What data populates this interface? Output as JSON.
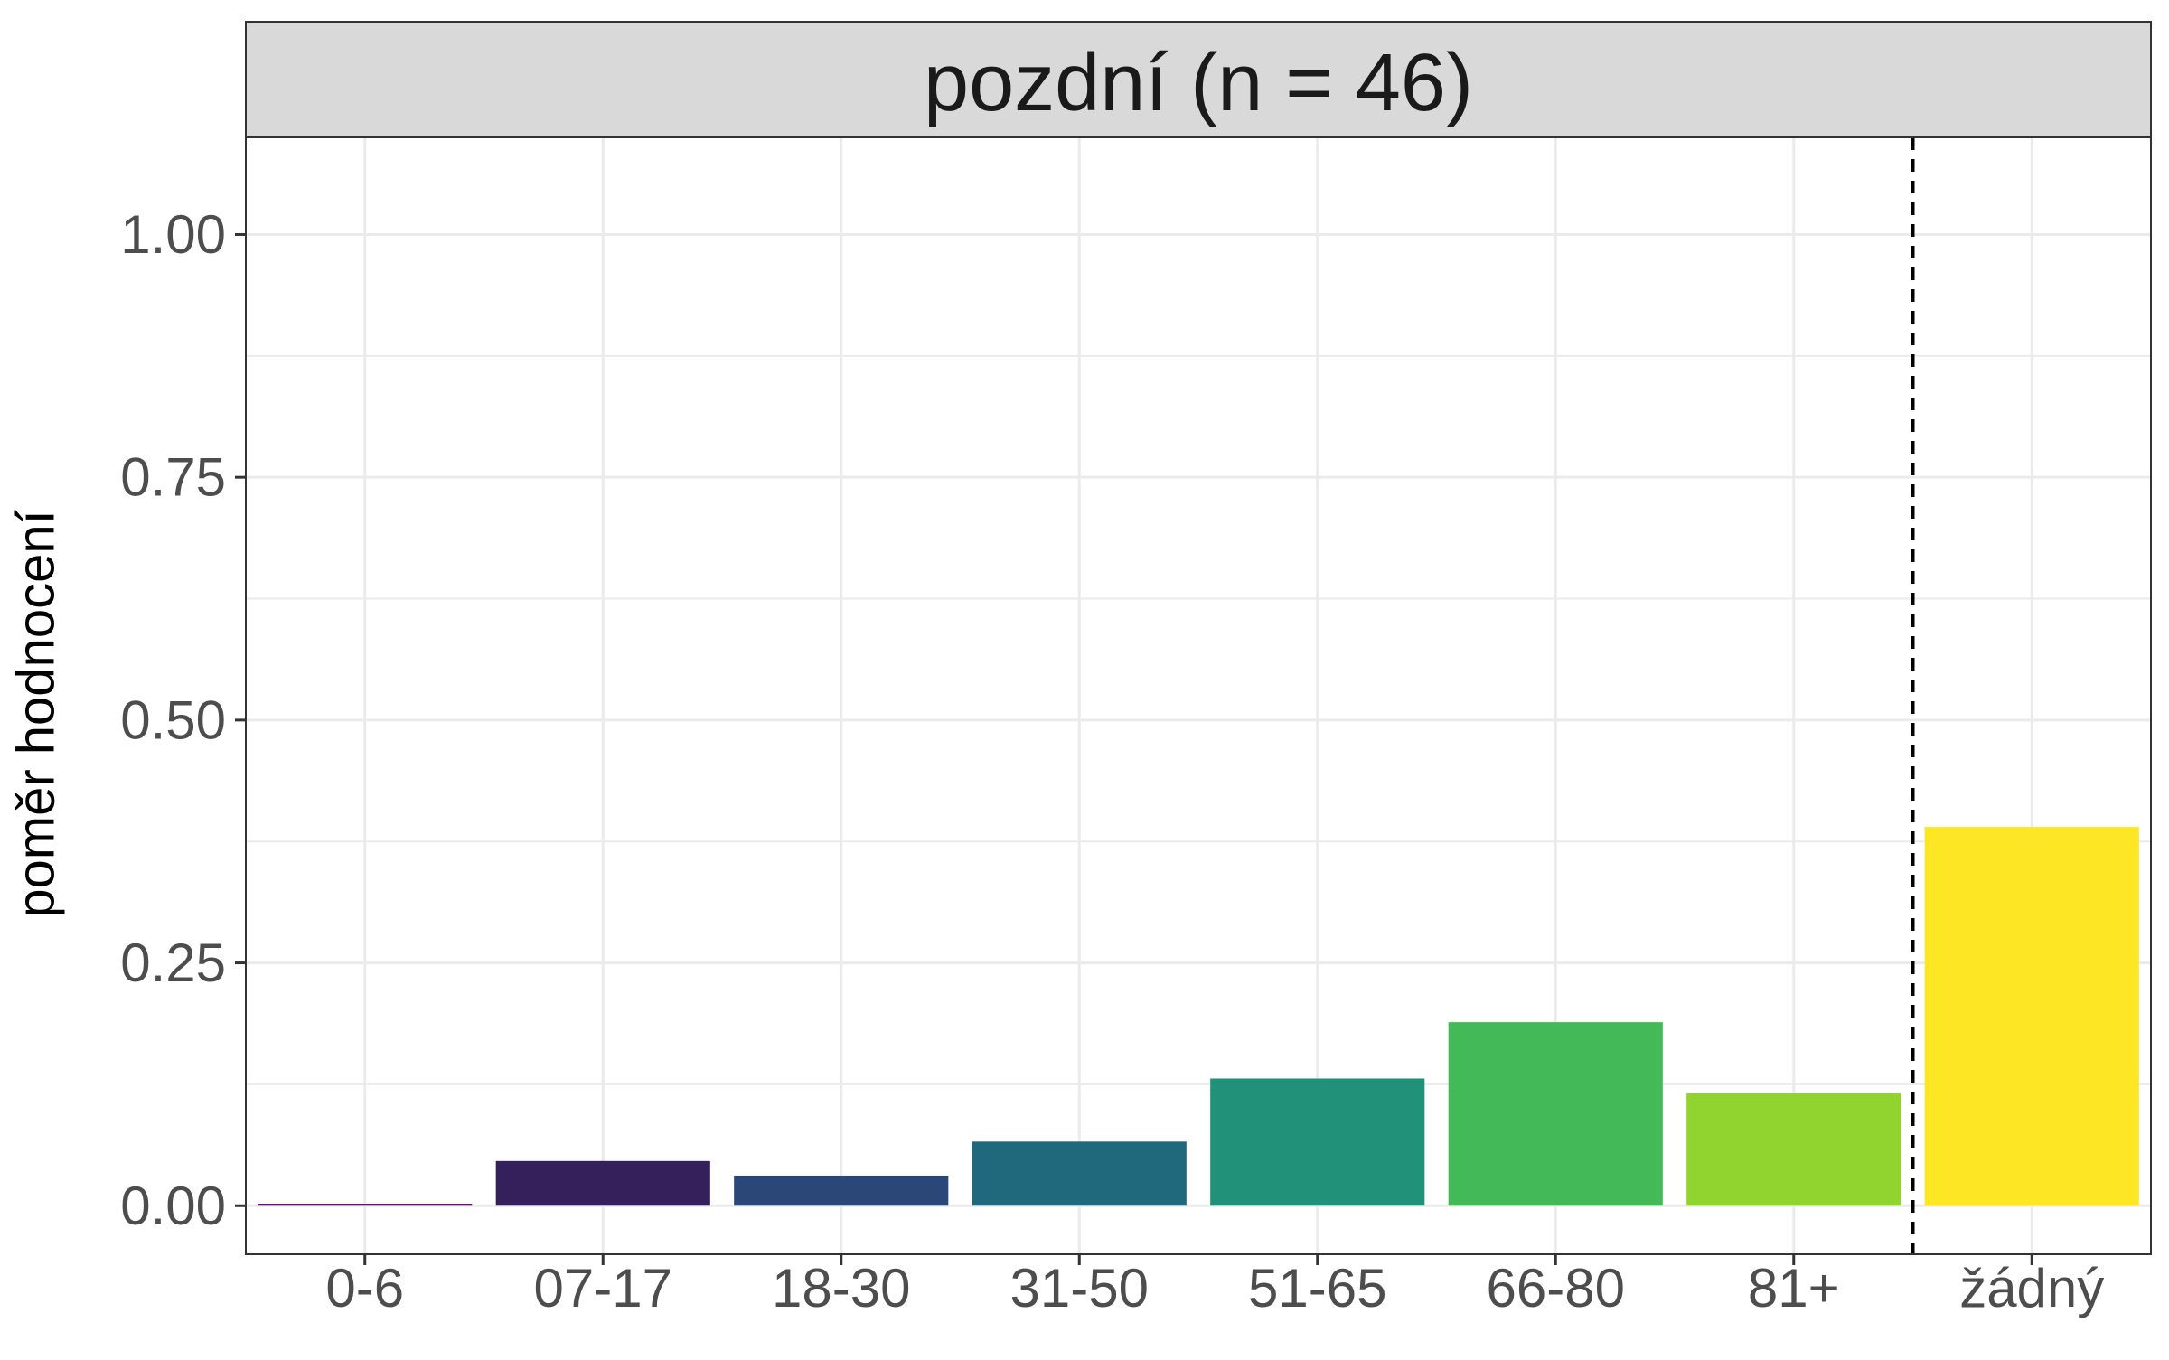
{
  "chart_data": {
    "type": "bar",
    "title": "",
    "facet_label": "pozdní (n = 46)",
    "xlabel": "",
    "ylabel": "poměr hodnocení",
    "categories": [
      "0-6",
      "07-17",
      "18-30",
      "31-50",
      "51-65",
      "66-80",
      "81+",
      "žádný"
    ],
    "values": [
      0.002,
      0.046,
      0.031,
      0.066,
      0.131,
      0.189,
      0.116,
      0.39
    ],
    "bar_colors": [
      "#440154",
      "#35205c",
      "#2a4778",
      "#20687c",
      "#21917a",
      "#43b958",
      "#92d42f",
      "#fde725"
    ],
    "ylim": [
      -0.05,
      1.1
    ],
    "yticks": [
      0.0,
      0.25,
      0.5,
      0.75,
      1.0
    ],
    "ytick_labels": [
      "0.00",
      "0.25",
      "0.50",
      "0.75",
      "1.00"
    ],
    "reference_line": {
      "style": "dashed",
      "position": "between 81+ and žádný"
    },
    "grid": true,
    "theme": "bw"
  }
}
